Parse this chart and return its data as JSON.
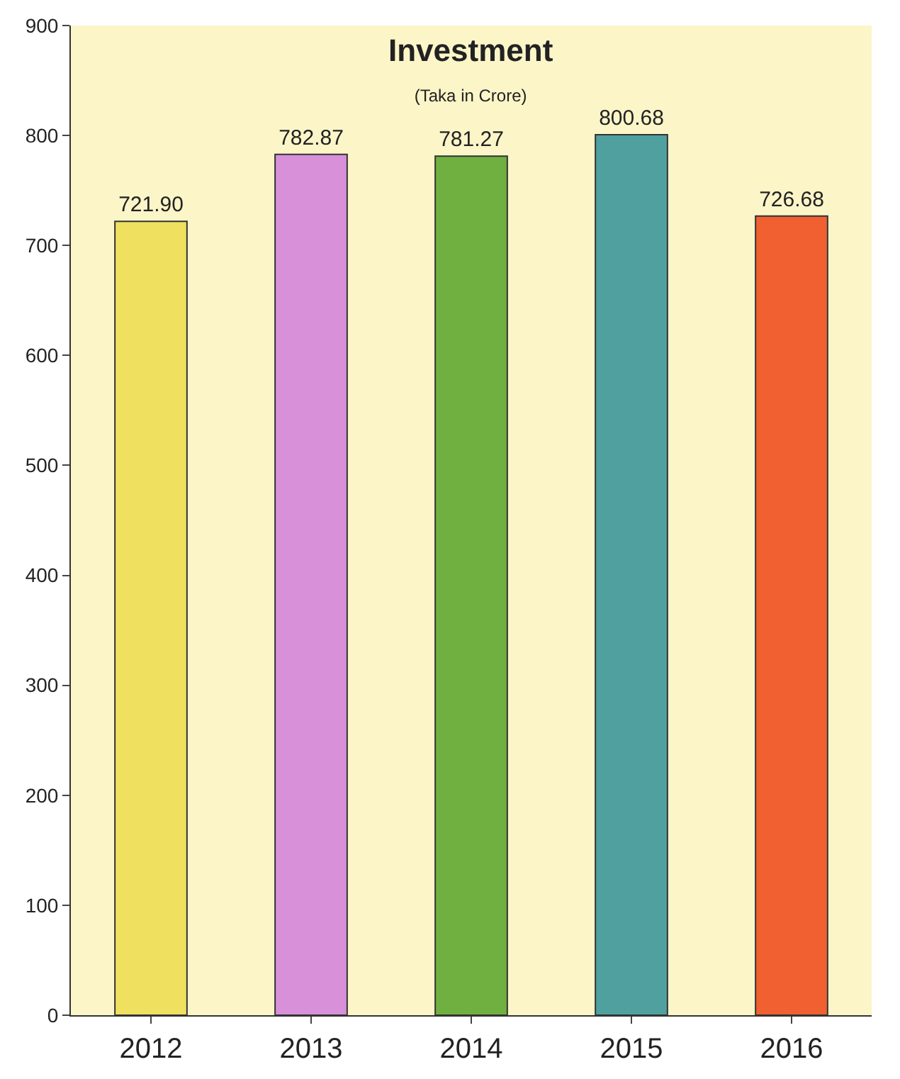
{
  "chart_data": {
    "type": "bar",
    "title": "Investment",
    "subtitle": "(Taka in Crore)",
    "categories": [
      "2012",
      "2013",
      "2014",
      "2015",
      "2016"
    ],
    "values": [
      721.9,
      782.87,
      781.27,
      800.68,
      726.68
    ],
    "value_labels": [
      "721.90",
      "782.87",
      "781.27",
      "800.68",
      "726.68"
    ],
    "colors": [
      "#f0e060",
      "#d890d8",
      "#70b040",
      "#50a0a0",
      "#f06030"
    ],
    "ylim": [
      0,
      900
    ],
    "yticks": [
      0,
      100,
      200,
      300,
      400,
      500,
      600,
      700,
      800,
      900
    ],
    "grid": false
  }
}
